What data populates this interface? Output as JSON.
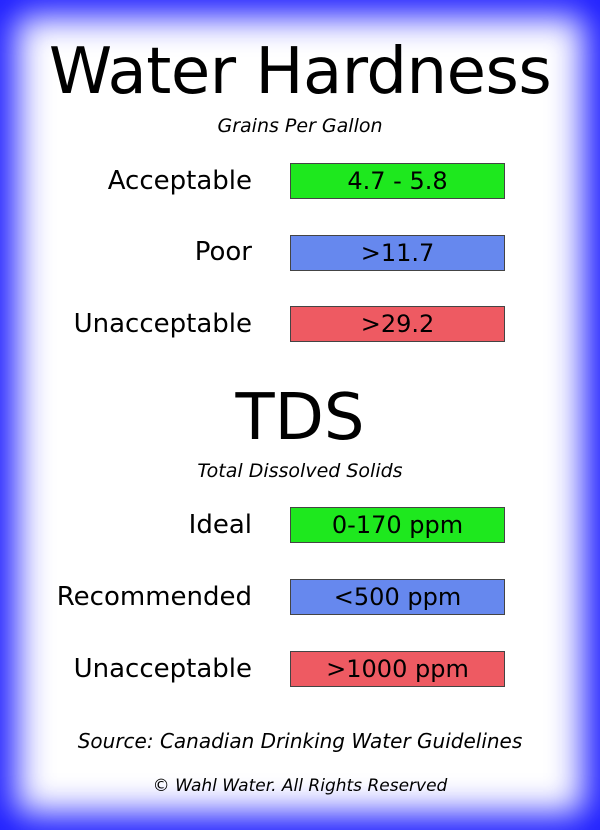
{
  "hardness": {
    "title": "Water Hardness",
    "subtitle": "Grains Per Gallon",
    "rows": [
      {
        "label": "Acceptable",
        "value": "4.7 - 5.8",
        "color": "#1ee81e"
      },
      {
        "label": "Poor",
        "value": ">11.7",
        "color": "#6688ee"
      },
      {
        "label": "Unacceptable",
        "value": ">29.2",
        "color": "#ee5a62"
      }
    ]
  },
  "tds": {
    "title": "TDS",
    "subtitle": "Total Dissolved Solids",
    "rows": [
      {
        "label": "Ideal",
        "value": "0-170 ppm",
        "color": "#1ee81e"
      },
      {
        "label": "Recommended",
        "value": "<500 ppm",
        "color": "#6688ee"
      },
      {
        "label": "Unacceptable",
        "value": ">1000 ppm",
        "color": "#ee5a62"
      }
    ]
  },
  "footer": {
    "source": "Source: Canadian Drinking Water Guidelines",
    "copyright": "© Wahl Water. All Rights Reserved"
  },
  "colors": {
    "border_glow": "#1a1aff",
    "good": "#1ee81e",
    "fair": "#6688ee",
    "bad": "#ee5a62"
  }
}
